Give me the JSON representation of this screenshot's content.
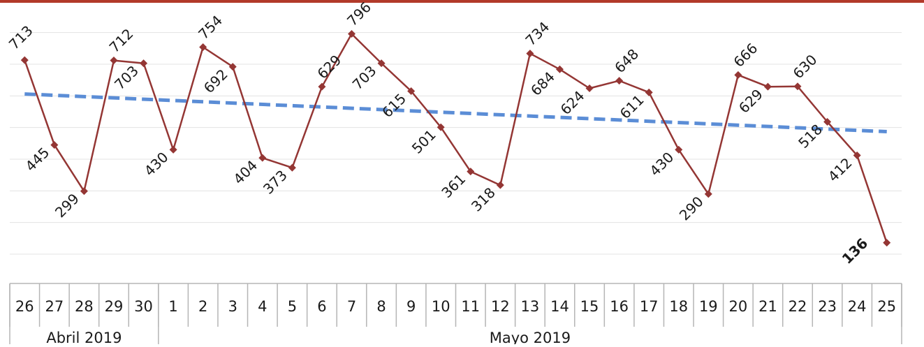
{
  "chart_data": {
    "type": "line",
    "title": "",
    "xlabel": "",
    "ylabel": "",
    "ylim": [
      100,
      850
    ],
    "grid": true,
    "legend": "none",
    "categories": [
      "26",
      "27",
      "28",
      "29",
      "30",
      "1",
      "2",
      "3",
      "4",
      "5",
      "6",
      "7",
      "8",
      "9",
      "10",
      "11",
      "12",
      "13",
      "14",
      "15",
      "16",
      "17",
      "18",
      "19",
      "20",
      "21",
      "22",
      "23",
      "24",
      "25"
    ],
    "x_groups": [
      {
        "label": "Abril 2019",
        "count": 5
      },
      {
        "label": "Mayo 2019",
        "count": 25
      }
    ],
    "series": [
      {
        "values": [
          713,
          445,
          299,
          712,
          703,
          430,
          754,
          692,
          404,
          373,
          629,
          796,
          703,
          615,
          501,
          361,
          318,
          734,
          684,
          624,
          648,
          611,
          430,
          290,
          666,
          629,
          630,
          518,
          412,
          136
        ],
        "color": "#943634"
      }
    ],
    "trendline": {
      "start": 606,
      "end": 487,
      "color": "#5b8dd6"
    },
    "highlight_last": true
  }
}
